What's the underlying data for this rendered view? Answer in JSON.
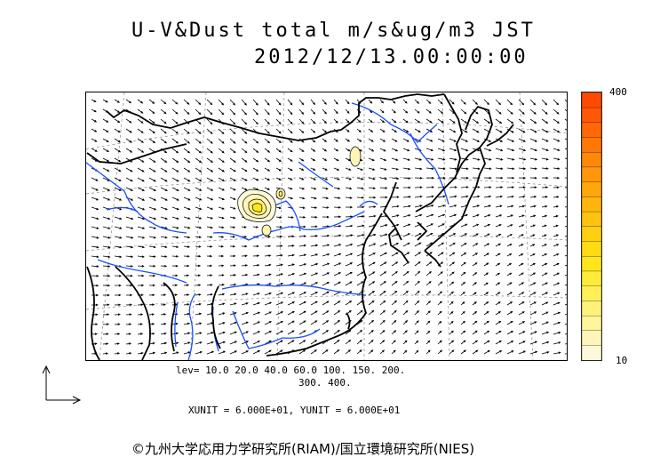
{
  "title": {
    "line1": "U-V&Dust total m/s&ug/m3 JST",
    "line2": "2012/12/13.00:00:00"
  },
  "legend_levels": {
    "line1": "lev= 10.0 20.0 40.0 60.0 100. 150. 200.",
    "line2": "300. 400."
  },
  "units_line": "XUNIT = 6.000E+01, YUNIT = 6.000E+01",
  "colorbar": {
    "max_label": "400",
    "min_label": "10",
    "colors": [
      "#fdf9d8",
      "#fff5b8",
      "#fff59a",
      "#fff27a",
      "#fff05a",
      "#ffec3a",
      "#ffe61c",
      "#ffdb14",
      "#ffcf12",
      "#ffc210",
      "#ffb40e",
      "#ffa60c",
      "#ff970a",
      "#ff8808",
      "#ff7806",
      "#ff6805",
      "#ff5804",
      "#ff4a03"
    ]
  },
  "copyright": "©九州大学応用力学研究所(RIAM)/国立環境研究所(NIES)",
  "map_colors": {
    "coast": "#000000",
    "rivers": "#1a4fff",
    "vectors": "#000000",
    "grid": "#888888"
  }
}
